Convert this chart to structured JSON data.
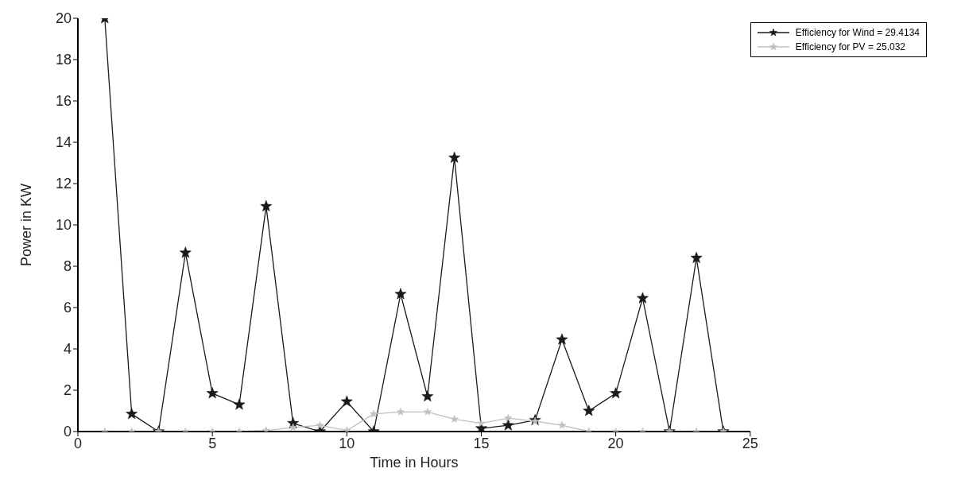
{
  "chart_data": {
    "type": "line",
    "xlabel": "Time in Hours",
    "ylabel": "Power in KW",
    "x": [
      1,
      2,
      3,
      4,
      5,
      6,
      7,
      8,
      9,
      10,
      11,
      12,
      13,
      14,
      15,
      16,
      17,
      18,
      19,
      20,
      21,
      22,
      23,
      24
    ],
    "series": [
      {
        "name": "Efficiency for Wind = 29.4134",
        "color": "#1a1a1a",
        "values": [
          20,
          0.85,
          0,
          8.65,
          1.85,
          1.3,
          10.9,
          0.4,
          0,
          1.45,
          0,
          6.65,
          1.7,
          13.25,
          0.15,
          0.3,
          0.55,
          4.45,
          1,
          1.85,
          6.45,
          0,
          8.4,
          0
        ]
      },
      {
        "name": "Efficiency for PV = 25.032",
        "color": "#c0c0c0",
        "values": [
          0,
          0,
          0,
          0,
          0,
          0,
          0.05,
          0.2,
          0.3,
          0.05,
          0.85,
          0.95,
          0.95,
          0.6,
          0.4,
          0.65,
          0.5,
          0.3,
          0,
          0,
          0,
          0,
          0,
          0
        ]
      }
    ],
    "xlim": [
      0,
      25
    ],
    "xticks": [
      0,
      5,
      10,
      15,
      20,
      25
    ],
    "ylim": [
      0,
      20
    ],
    "yticks": [
      0,
      2,
      4,
      6,
      8,
      10,
      12,
      14,
      16,
      18,
      20
    ],
    "grid": false,
    "legend": "top right",
    "marker": "star",
    "line_style": "solid"
  }
}
